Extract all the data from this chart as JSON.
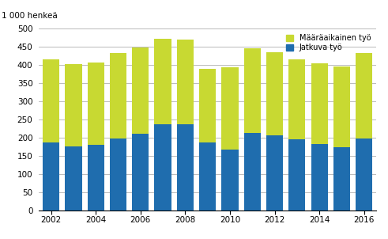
{
  "years": [
    2002,
    2003,
    2004,
    2005,
    2006,
    2007,
    2008,
    2009,
    2010,
    2011,
    2012,
    2013,
    2014,
    2015,
    2016
  ],
  "jatkuva": [
    186,
    175,
    180,
    198,
    210,
    236,
    237,
    187,
    168,
    212,
    206,
    195,
    183,
    174,
    197
  ],
  "maaraikainen": [
    230,
    228,
    226,
    236,
    238,
    236,
    232,
    203,
    225,
    234,
    230,
    221,
    222,
    222,
    235
  ],
  "jatkuva_color": "#1F6DAE",
  "maaraikainen_color": "#C8D932",
  "ylabel": "1 000 henkeä",
  "ylim": [
    0,
    500
  ],
  "yticks": [
    0,
    50,
    100,
    150,
    200,
    250,
    300,
    350,
    400,
    450,
    500
  ],
  "legend_maaraikainen": "Määräaikainen työ",
  "legend_jatkuva": "Jatkuva työ",
  "bar_width": 0.75,
  "background_color": "#ffffff",
  "grid_color": "#b0b0b0"
}
